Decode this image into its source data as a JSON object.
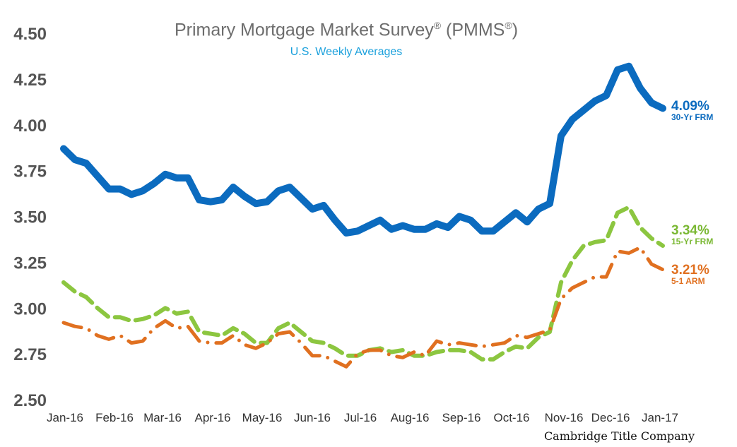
{
  "chart_data": {
    "type": "line",
    "title": "Primary Mortgage Market Survey",
    "title_suffix": "(PMMS",
    "reg_mark": "®",
    "title_close": ")",
    "subtitle": "U.S. Weekly Averages",
    "credit": "Cambridge Title Company",
    "ylim": [
      2.5,
      4.5
    ],
    "yticks": [
      "4.50",
      "4.25",
      "4.00",
      "3.75",
      "3.50",
      "3.25",
      "3.00",
      "2.75",
      "2.50"
    ],
    "ytick_values": [
      4.5,
      4.25,
      4.0,
      3.75,
      3.5,
      3.25,
      3.0,
      2.75,
      2.5
    ],
    "xticks": [
      "Jan-16",
      "Feb-16",
      "Mar-16",
      "Apr-16",
      "May-16",
      "Jun-16",
      "Jul-16",
      "Aug-16",
      "Sep-16",
      "Oct-16",
      "Nov-16",
      "Dec-16",
      "Jan-17"
    ],
    "grid": false,
    "legend": "end-of-line labels",
    "series": [
      {
        "name": "30-Yr FRM",
        "end_label": "4.09%",
        "color": "#0b6bbf",
        "style": "solid",
        "values": [
          3.87,
          3.81,
          3.79,
          3.72,
          3.65,
          3.65,
          3.62,
          3.64,
          3.68,
          3.73,
          3.71,
          3.71,
          3.59,
          3.58,
          3.59,
          3.66,
          3.61,
          3.57,
          3.58,
          3.64,
          3.66,
          3.6,
          3.54,
          3.56,
          3.48,
          3.41,
          3.42,
          3.45,
          3.48,
          3.43,
          3.45,
          3.43,
          3.43,
          3.46,
          3.44,
          3.5,
          3.48,
          3.42,
          3.42,
          3.47,
          3.52,
          3.47,
          3.54,
          3.57,
          3.94,
          4.03,
          4.08,
          4.13,
          4.16,
          4.3,
          4.32,
          4.2,
          4.12,
          4.09
        ]
      },
      {
        "name": "15-Yr FRM",
        "end_label": "3.34%",
        "color": "#8cc640",
        "style": "dashed",
        "values": [
          3.14,
          3.09,
          3.06,
          3.0,
          2.95,
          2.95,
          2.93,
          2.94,
          2.96,
          3.0,
          2.97,
          2.98,
          2.87,
          2.86,
          2.85,
          2.89,
          2.86,
          2.81,
          2.81,
          2.89,
          2.92,
          2.87,
          2.82,
          2.81,
          2.78,
          2.74,
          2.74,
          2.77,
          2.78,
          2.76,
          2.77,
          2.74,
          2.74,
          2.76,
          2.77,
          2.77,
          2.76,
          2.72,
          2.72,
          2.76,
          2.79,
          2.78,
          2.84,
          2.87,
          3.14,
          3.26,
          3.34,
          3.36,
          3.37,
          3.52,
          3.55,
          3.44,
          3.38,
          3.34
        ]
      },
      {
        "name": "5-1 ARM",
        "end_label": "3.21%",
        "color": "#e07020",
        "style": "mixed",
        "values": [
          2.92,
          2.9,
          2.89,
          2.85,
          2.83,
          2.85,
          2.81,
          2.82,
          2.89,
          2.93,
          2.89,
          2.9,
          2.82,
          2.81,
          2.81,
          2.85,
          2.8,
          2.78,
          2.81,
          2.86,
          2.87,
          2.81,
          2.74,
          2.74,
          2.71,
          2.68,
          2.75,
          2.77,
          2.77,
          2.74,
          2.73,
          2.76,
          2.74,
          2.82,
          2.8,
          2.81,
          2.8,
          2.79,
          2.8,
          2.81,
          2.85,
          2.84,
          2.86,
          2.88,
          3.05,
          3.11,
          3.14,
          3.17,
          3.17,
          3.31,
          3.3,
          3.33,
          3.24,
          3.21
        ]
      }
    ]
  }
}
